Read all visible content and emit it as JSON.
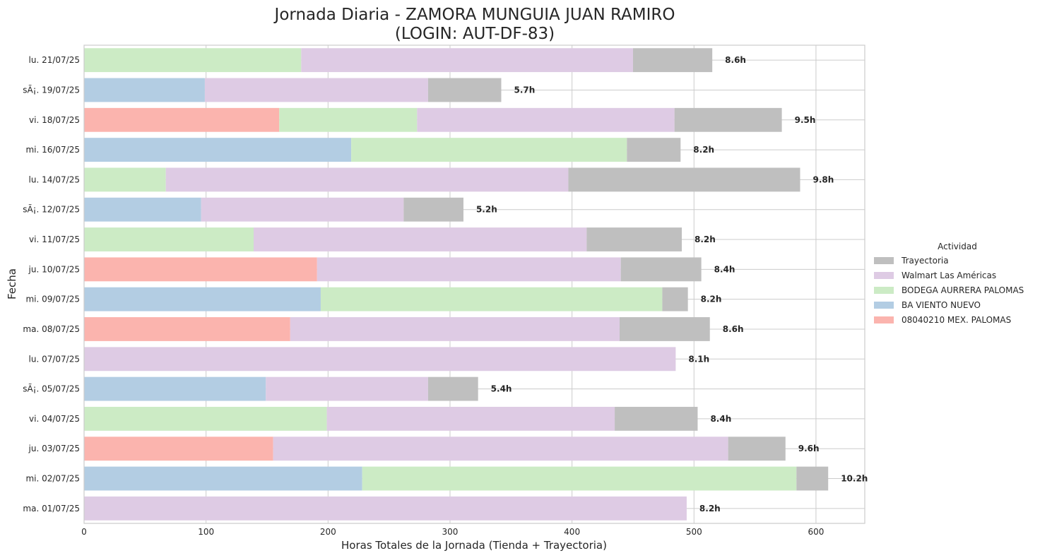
{
  "chart_data": {
    "type": "bar",
    "orientation": "horizontal",
    "stacked": true,
    "title_line1": "Jornada Diaria - ZAMORA MUNGUIA JUAN RAMIRO",
    "title_line2": "(LOGIN: AUT-DF-83)",
    "xlabel": "Horas Totales de la Jornada (Tienda + Trayectoria)",
    "ylabel": "Fecha",
    "xlim": [
      0,
      640
    ],
    "xticks": [
      "0",
      "100",
      "200",
      "300",
      "400",
      "500",
      "600"
    ],
    "grid": true,
    "legend": {
      "title": "Actividad",
      "placement": "right",
      "entries": [
        "Trayectoria",
        "Walmart Las Américas",
        "BODEGA AURRERA PALOMAS",
        "BA VIENTO NUEVO",
        "08040210 MEX. PALOMAS"
      ]
    },
    "categories": [
      "lu. 21/07/25",
      "sÃ¡. 19/07/25",
      "vi. 18/07/25",
      "mi. 16/07/25",
      "lu. 14/07/25",
      "sÃ¡. 12/07/25",
      "vi. 11/07/25",
      "ju. 10/07/25",
      "mi. 09/07/25",
      "ma. 08/07/25",
      "lu. 07/07/25",
      "sÃ¡. 05/07/25",
      "vi. 04/07/25",
      "ju. 03/07/25",
      "mi. 02/07/25",
      "ma. 01/07/25"
    ],
    "series": [
      {
        "name": "08040210 MEX. PALOMAS",
        "color": "#fbb4ae",
        "values": [
          0,
          0,
          160,
          0,
          0,
          0,
          0,
          191,
          0,
          169,
          0,
          0,
          0,
          155,
          0,
          0
        ]
      },
      {
        "name": "BA VIENTO NUEVO",
        "color": "#b3cde3",
        "values": [
          0,
          99,
          0,
          219,
          0,
          96,
          0,
          0,
          194,
          0,
          0,
          149,
          0,
          0,
          228,
          0
        ]
      },
      {
        "name": "BODEGA AURRERA PALOMAS",
        "color": "#ccebc5",
        "values": [
          178,
          0,
          113,
          226,
          67,
          0,
          139,
          0,
          280,
          0,
          0,
          0,
          199,
          0,
          356,
          0
        ]
      },
      {
        "name": "Walmart Las Américas",
        "color": "#decbe4",
        "values": [
          272,
          183,
          211,
          0,
          330,
          166,
          273,
          249,
          0,
          270,
          485,
          133,
          236,
          373,
          0,
          494
        ]
      },
      {
        "name": "Trayectoria",
        "color": "#bfbfbf",
        "values": [
          65,
          60,
          88,
          44,
          190,
          49,
          78,
          66,
          21,
          74,
          0,
          41,
          68,
          47,
          26,
          0
        ]
      }
    ],
    "totals_labels": [
      "8.6h",
      "5.7h",
      "9.5h",
      "8.2h",
      "9.8h",
      "5.2h",
      "8.2h",
      "8.4h",
      "8.2h",
      "8.6h",
      "8.1h",
      "5.4h",
      "8.4h",
      "9.6h",
      "10.2h",
      "8.2h"
    ]
  }
}
